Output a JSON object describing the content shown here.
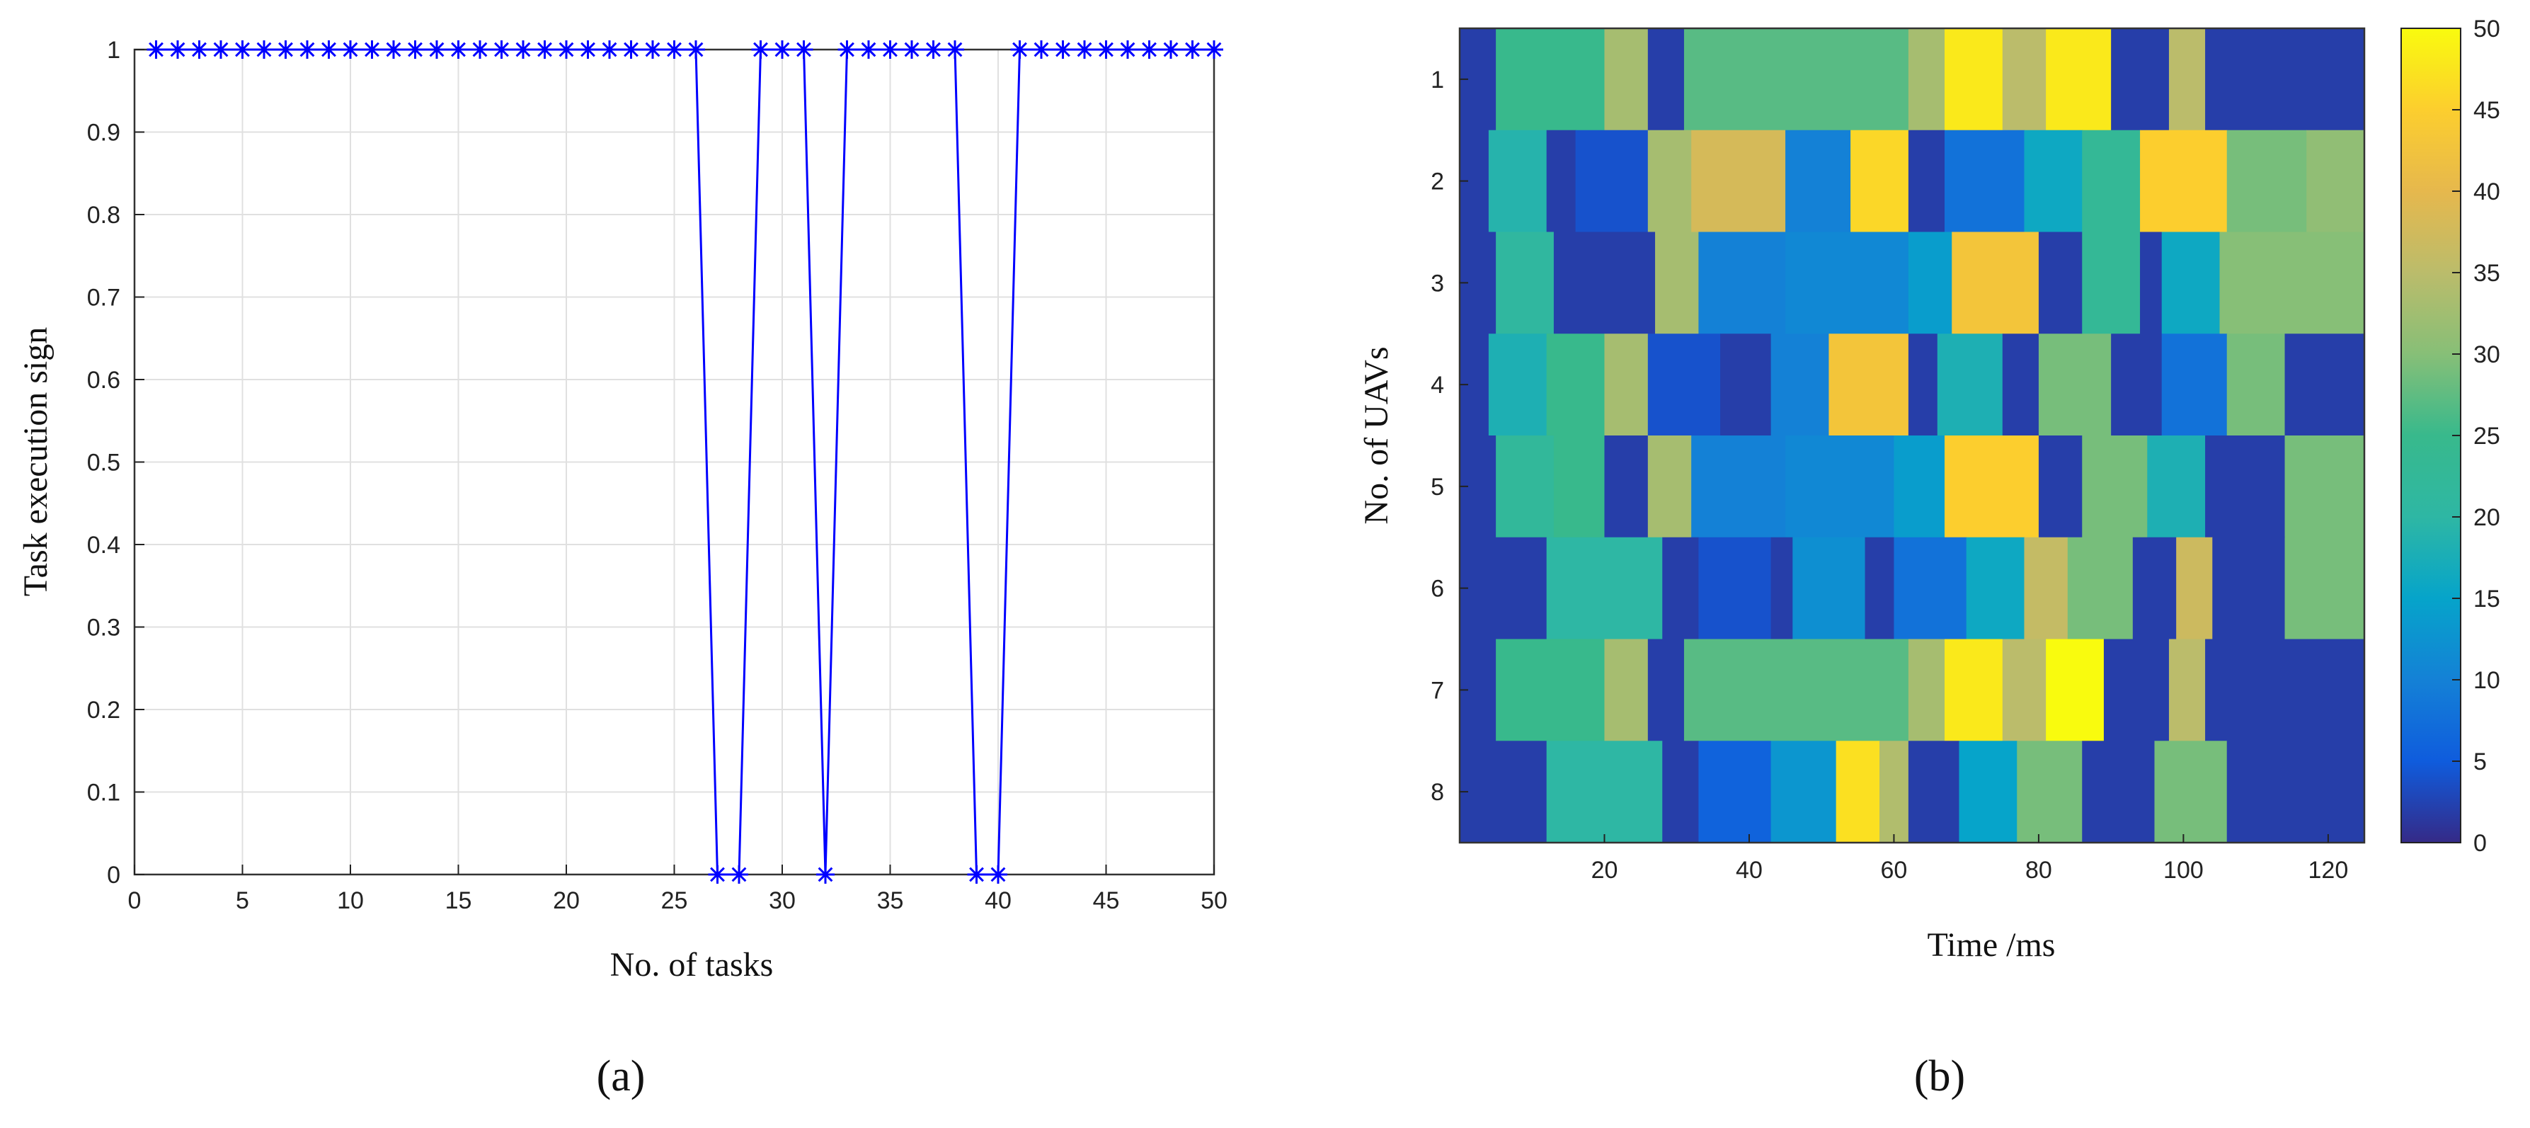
{
  "chart_data": [
    {
      "panel": "a",
      "type": "line",
      "title": "",
      "xlabel": "No. of tasks",
      "ylabel": "Task execution sign",
      "xlim": [
        0,
        50
      ],
      "ylim": [
        0,
        1
      ],
      "xticks": [
        0,
        5,
        10,
        15,
        20,
        25,
        30,
        35,
        40,
        45,
        50
      ],
      "yticks": [
        0,
        0.1,
        0.2,
        0.3,
        0.4,
        0.5,
        0.6,
        0.7,
        0.8,
        0.9,
        1
      ],
      "grid": true,
      "marker": "*",
      "color": "#0000ff",
      "series": [
        {
          "x": [
            1,
            2,
            3,
            4,
            5,
            6,
            7,
            8,
            9,
            10,
            11,
            12,
            13,
            14,
            15,
            16,
            17,
            18,
            19,
            20,
            21,
            22,
            23,
            24,
            25,
            26,
            27,
            28,
            29,
            30,
            31,
            32,
            33,
            34,
            35,
            36,
            37,
            38,
            39,
            40,
            41,
            42,
            43,
            44,
            45,
            46,
            47,
            48,
            49,
            50
          ],
          "values": [
            1,
            1,
            1,
            1,
            1,
            1,
            1,
            1,
            1,
            1,
            1,
            1,
            1,
            1,
            1,
            1,
            1,
            1,
            1,
            1,
            1,
            1,
            1,
            1,
            1,
            1,
            0,
            0,
            1,
            1,
            1,
            0,
            1,
            1,
            1,
            1,
            1,
            1,
            0,
            0,
            1,
            1,
            1,
            1,
            1,
            1,
            1,
            1,
            1,
            1
          ]
        }
      ]
    },
    {
      "panel": "b",
      "type": "heatmap",
      "title": "",
      "xlabel": "Time /ms",
      "ylabel": "No. of UAVs",
      "xlim": [
        0,
        125
      ],
      "xticks": [
        20,
        40,
        60,
        80,
        100,
        120
      ],
      "yticks": [
        1,
        2,
        3,
        4,
        5,
        6,
        7,
        8
      ],
      "colorbar": {
        "min": 0,
        "max": 50,
        "ticks": [
          0,
          5,
          10,
          15,
          20,
          25,
          30,
          35,
          40,
          45,
          50
        ],
        "colormap": "parula"
      },
      "rows": [
        {
          "uav": 1,
          "segments": [
            [
              0,
              5,
              2
            ],
            [
              5,
              20,
              25
            ],
            [
              20,
              26,
              33
            ],
            [
              26,
              31,
              2
            ],
            [
              31,
              47,
              27
            ],
            [
              47,
              62,
              27
            ],
            [
              62,
              67,
              33
            ],
            [
              67,
              75,
              48
            ],
            [
              75,
              81,
              35
            ],
            [
              81,
              90,
              48
            ],
            [
              90,
              98,
              2
            ],
            [
              98,
              103,
              35
            ],
            [
              103,
              125,
              2
            ]
          ]
        },
        {
          "uav": 2,
          "segments": [
            [
              0,
              4,
              2
            ],
            [
              4,
              12,
              19
            ],
            [
              12,
              16,
              2
            ],
            [
              16,
              26,
              4
            ],
            [
              26,
              32,
              33
            ],
            [
              32,
              45,
              38
            ],
            [
              45,
              54,
              10
            ],
            [
              54,
              62,
              46
            ],
            [
              62,
              67,
              2
            ],
            [
              67,
              78,
              8
            ],
            [
              78,
              86,
              16
            ],
            [
              86,
              94,
              23
            ],
            [
              94,
              106,
              45
            ],
            [
              106,
              117,
              29
            ],
            [
              117,
              125,
              31
            ]
          ]
        },
        {
          "uav": 3,
          "segments": [
            [
              0,
              5,
              2
            ],
            [
              5,
              13,
              21
            ],
            [
              13,
              27,
              2
            ],
            [
              27,
              33,
              33
            ],
            [
              33,
              45,
              10
            ],
            [
              45,
              62,
              11
            ],
            [
              62,
              68,
              14
            ],
            [
              68,
              80,
              43
            ],
            [
              80,
              86,
              2
            ],
            [
              86,
              94,
              23
            ],
            [
              94,
              97,
              2
            ],
            [
              97,
              105,
              16
            ],
            [
              105,
              125,
              30
            ]
          ]
        },
        {
          "uav": 4,
          "segments": [
            [
              0,
              4,
              2
            ],
            [
              4,
              12,
              18
            ],
            [
              12,
              20,
              25
            ],
            [
              20,
              26,
              33
            ],
            [
              26,
              36,
              4
            ],
            [
              36,
              43,
              2
            ],
            [
              43,
              51,
              10
            ],
            [
              51,
              62,
              43
            ],
            [
              62,
              66,
              2
            ],
            [
              66,
              75,
              18
            ],
            [
              75,
              80,
              2
            ],
            [
              80,
              90,
              29
            ],
            [
              90,
              97,
              2
            ],
            [
              97,
              106,
              8
            ],
            [
              106,
              114,
              29
            ],
            [
              114,
              125,
              2
            ]
          ]
        },
        {
          "uav": 5,
          "segments": [
            [
              0,
              5,
              2
            ],
            [
              5,
              13,
              22
            ],
            [
              13,
              20,
              25
            ],
            [
              20,
              26,
              2
            ],
            [
              26,
              32,
              33
            ],
            [
              32,
              45,
              10
            ],
            [
              45,
              60,
              11
            ],
            [
              60,
              67,
              14
            ],
            [
              67,
              80,
              45
            ],
            [
              80,
              86,
              2
            ],
            [
              86,
              95,
              29
            ],
            [
              95,
              103,
              18
            ],
            [
              103,
              114,
              2
            ],
            [
              114,
              125,
              29
            ]
          ]
        },
        {
          "uav": 6,
          "segments": [
            [
              0,
              12,
              2
            ],
            [
              12,
              28,
              20
            ],
            [
              28,
              33,
              2
            ],
            [
              33,
              43,
              4
            ],
            [
              43,
              46,
              2
            ],
            [
              46,
              56,
              12
            ],
            [
              56,
              60,
              2
            ],
            [
              60,
              70,
              8
            ],
            [
              70,
              78,
              16
            ],
            [
              78,
              84,
              36
            ],
            [
              84,
              93,
              29
            ],
            [
              93,
              99,
              2
            ],
            [
              99,
              104,
              37
            ],
            [
              104,
              114,
              2
            ],
            [
              114,
              125,
              29
            ]
          ]
        },
        {
          "uav": 7,
          "segments": [
            [
              0,
              5,
              2
            ],
            [
              5,
              20,
              25
            ],
            [
              20,
              26,
              33
            ],
            [
              26,
              31,
              2
            ],
            [
              31,
              47,
              27
            ],
            [
              47,
              62,
              27
            ],
            [
              62,
              67,
              33
            ],
            [
              67,
              75,
              48
            ],
            [
              75,
              81,
              35
            ],
            [
              81,
              89,
              50
            ],
            [
              89,
              98,
              2
            ],
            [
              98,
              103,
              35
            ],
            [
              103,
              125,
              2
            ]
          ]
        },
        {
          "uav": 8,
          "segments": [
            [
              0,
              12,
              2
            ],
            [
              12,
              28,
              20
            ],
            [
              28,
              33,
              2
            ],
            [
              33,
              43,
              6
            ],
            [
              43,
              52,
              13
            ],
            [
              52,
              58,
              47
            ],
            [
              58,
              62,
              34
            ],
            [
              62,
              69,
              2
            ],
            [
              69,
              77,
              15
            ],
            [
              77,
              86,
              29
            ],
            [
              86,
              96,
              2
            ],
            [
              96,
              106,
              29
            ],
            [
              106,
              125,
              2
            ]
          ]
        }
      ]
    }
  ],
  "labels": {
    "panel_a_caption": "(a)",
    "panel_b_caption": "(b)"
  },
  "colors": {
    "line": "#0000ff",
    "grid": "#e0e0e0",
    "axis": "#222222"
  }
}
